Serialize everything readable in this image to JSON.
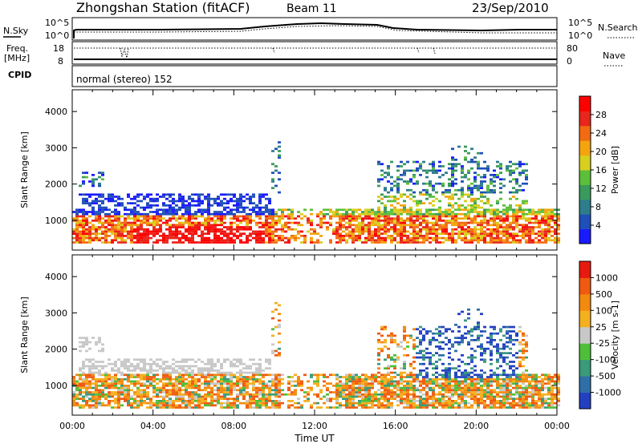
{
  "header": {
    "station": "Zhongshan Station (fitACF)",
    "beam": "Beam 11",
    "date": "23/Sep/2010"
  },
  "meta_panels": {
    "nsky_label": "N.Sky",
    "nsky_ticks": [
      "10^5",
      "10^0"
    ],
    "nsearch_label": "N.Search",
    "nsearch_ticks": [
      "10^5",
      "10^0"
    ],
    "freq_label_line1": "Freq.",
    "freq_label_line2": "[MHz]",
    "freq_ticks": [
      "18",
      "8"
    ],
    "nave_label": "Nave",
    "nave_ticks": [
      "80",
      "0"
    ],
    "cpid_label": "CPID",
    "cpid_text": "normal (stereo) 152"
  },
  "chart_data": [
    {
      "type": "heatmap",
      "name": "power",
      "ylabel": "Slant Range [km]",
      "ylim": [
        180,
        4600
      ],
      "yticks": [
        "4000",
        "3000",
        "2000",
        "1000"
      ],
      "xlabel": "",
      "xlim_hours": [
        0,
        24
      ],
      "colorbar": {
        "label": "Power [dB]",
        "ticks": [
          "28",
          "24",
          "20",
          "16",
          "12",
          "8",
          "4"
        ],
        "colors": [
          "#1a1aff",
          "#1f4fb8",
          "#2e7d8c",
          "#3a9a5c",
          "#5cbf3a",
          "#d8cf1e",
          "#f5a40f",
          "#f26b12",
          "#e8261c",
          "#ff0000"
        ]
      }
    },
    {
      "type": "heatmap",
      "name": "velocity",
      "ylabel": "Slant Range [km]",
      "ylim": [
        180,
        4600
      ],
      "yticks": [
        "4000",
        "3000",
        "2000",
        "1000"
      ],
      "xlabel": "Time UT",
      "xticks": [
        "00:00",
        "04:00",
        "08:00",
        "12:00",
        "16:00",
        "20:00",
        "00:00"
      ],
      "xlim_hours": [
        0,
        24
      ],
      "colorbar": {
        "label": "Velocity [m s-1]",
        "ticks": [
          "1000",
          "500",
          "100",
          "25",
          "-25",
          "-100",
          "-500",
          "-1000"
        ],
        "colors": [
          "#2240c0",
          "#2f6fa8",
          "#3a9a7a",
          "#4fbf3a",
          "#c8c8c8",
          "#f5b020",
          "#f28a10",
          "#f05a10",
          "#e81a10"
        ]
      }
    }
  ]
}
